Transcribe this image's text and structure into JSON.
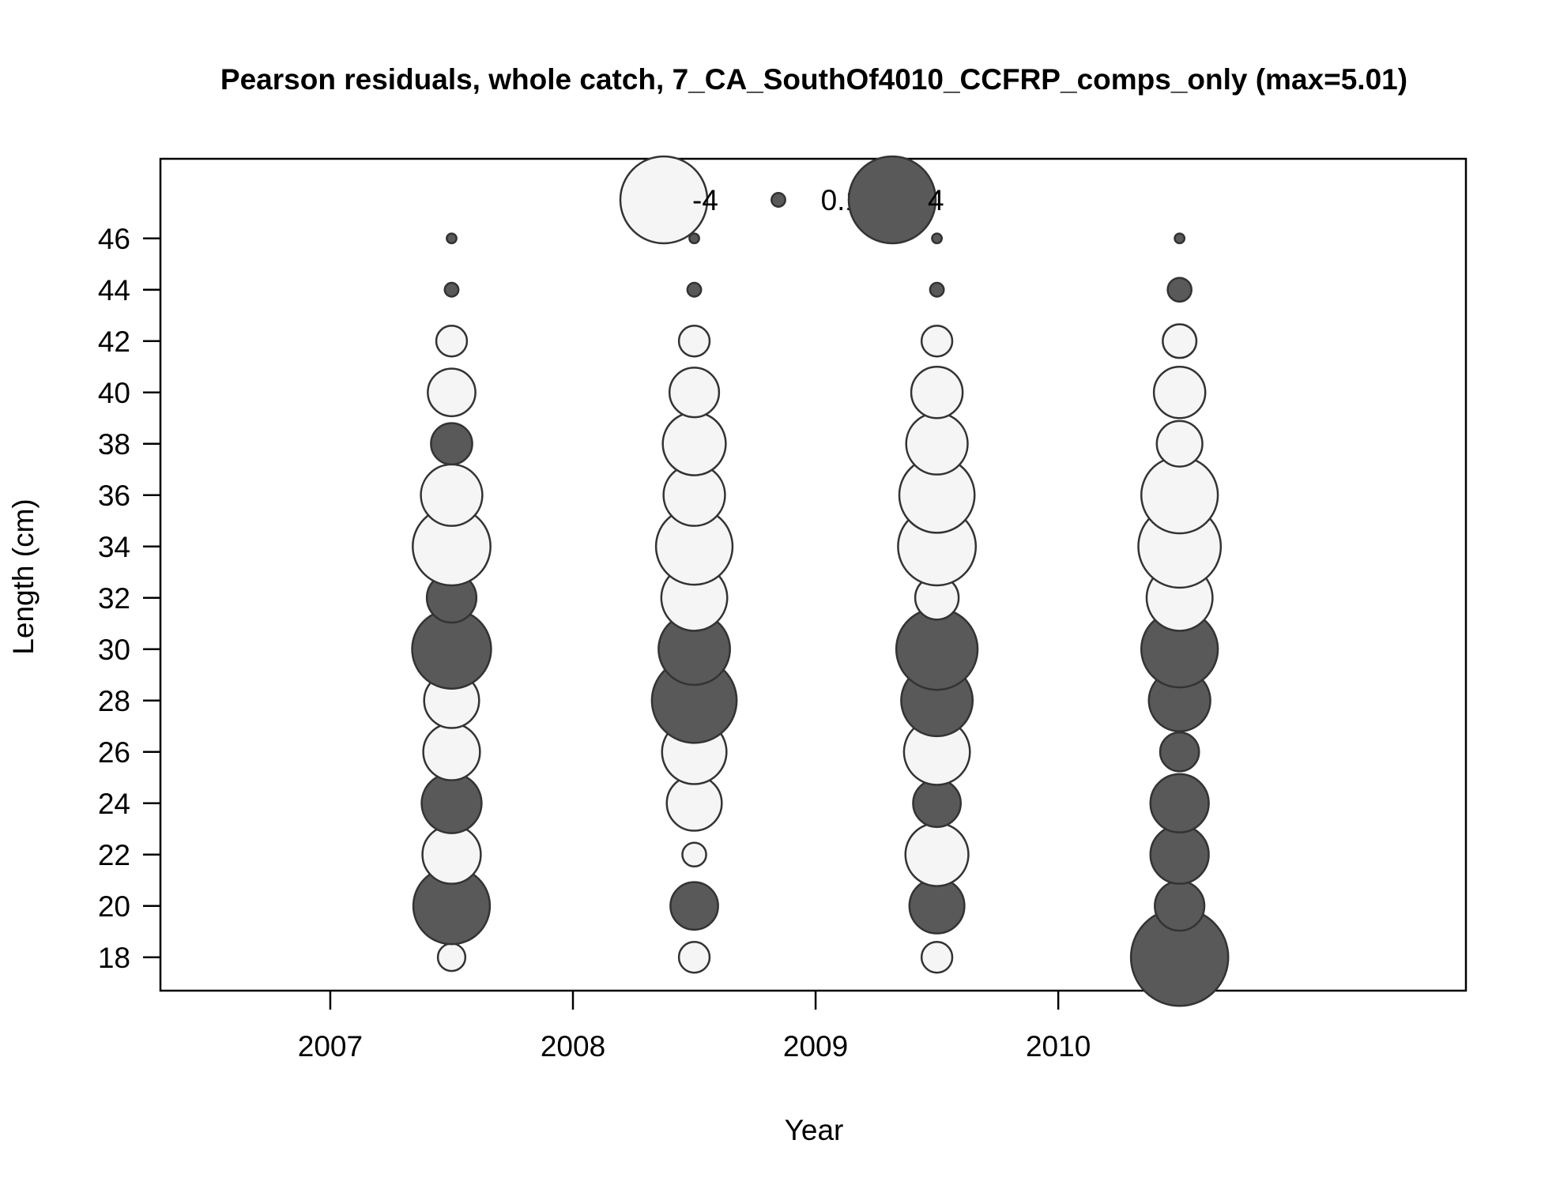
{
  "chart_data": {
    "type": "scatter",
    "subtype": "bubble",
    "title": "Pearson residuals, whole catch, 7_CA_SouthOf4010_CCFRP_comps_only (max=5.01)",
    "xlabel": "Year",
    "ylabel": "Length (cm)",
    "xlim": [
      2006.3,
      2011.68
    ],
    "ylim": [
      16.7,
      49.1
    ],
    "x_ticks": [
      2007,
      2008,
      2009,
      2010
    ],
    "y_ticks": [
      18,
      20,
      22,
      24,
      26,
      28,
      30,
      32,
      34,
      36,
      38,
      40,
      42,
      44,
      46
    ],
    "grid": false,
    "legend": {
      "placement": "top-center",
      "entries": [
        {
          "label": "-4",
          "value": -4
        },
        {
          "label": "0.1",
          "value": 0.1
        },
        {
          "label": "4",
          "value": 4
        }
      ]
    },
    "max_abs_residual": 5.01,
    "colors": {
      "positive": "#595959",
      "negative": "#f5f5f5",
      "outline": "#333333"
    },
    "lengths": [
      18,
      20,
      22,
      24,
      26,
      28,
      30,
      32,
      34,
      36,
      38,
      40,
      42,
      44,
      46
    ],
    "series": [
      {
        "year": 2007.5,
        "residuals": [
          -0.4,
          3.1,
          -1.8,
          1.9,
          -1.7,
          -1.6,
          3.3,
          1.3,
          -3.2,
          -2.0,
          0.9,
          -1.2,
          -0.5,
          0.1,
          0.05
        ]
      },
      {
        "year": 2008.5,
        "residuals": [
          -0.5,
          1.2,
          -0.3,
          -1.6,
          -2.2,
          3.8,
          2.7,
          -2.3,
          -3.1,
          -2.0,
          -2.1,
          -1.3,
          -0.5,
          0.1,
          0.05
        ]
      },
      {
        "year": 2009.5,
        "residuals": [
          -0.5,
          1.6,
          -2.1,
          1.2,
          -2.3,
          2.7,
          3.5,
          -1.0,
          -3.2,
          -3.0,
          -2.0,
          -1.4,
          -0.5,
          0.1,
          0.05
        ]
      },
      {
        "year": 2010.5,
        "residuals": [
          5.01,
          1.3,
          1.8,
          1.8,
          0.8,
          2.0,
          3.1,
          -2.3,
          -3.6,
          -3.1,
          -1.1,
          -1.4,
          -0.6,
          0.3,
          0.05
        ]
      }
    ]
  }
}
